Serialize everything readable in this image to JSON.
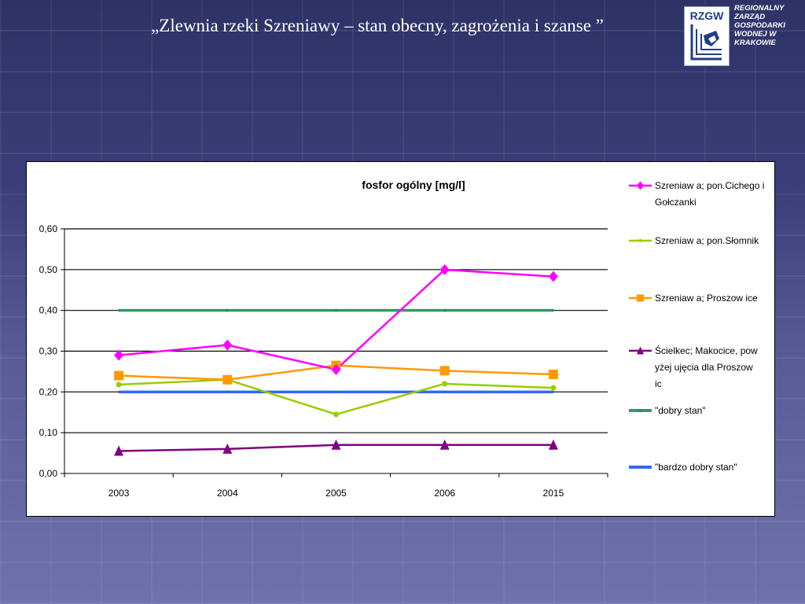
{
  "slide": {
    "title": "„Zlewnia rzeki Szreniawy – stan obecny, zagrożenia i szanse ”"
  },
  "logo": {
    "abbr": "RZGW",
    "lines": [
      "REGIONALNY",
      "ZARZĄD",
      "GOSPODARKI",
      "WODNEJ W",
      "KRAKOWIE"
    ]
  },
  "chart_data": {
    "type": "line",
    "title": "fosfor ogólny [mg/l]",
    "xlabel": "",
    "ylabel": "",
    "categories": [
      "2003",
      "2004",
      "2005",
      "2006",
      "2015"
    ],
    "ylim": [
      0,
      0.6
    ],
    "yticks": [
      "0,00",
      "0,10",
      "0,20",
      "0,30",
      "0,40",
      "0,50",
      "0,60"
    ],
    "grid": true,
    "legend_position": "right",
    "series": [
      {
        "name": "Szreniaw a; pon.Cichego i Gołczanki",
        "color": "#ff00ff",
        "marker": "diamond",
        "values": [
          0.29,
          0.315,
          0.255,
          0.5,
          0.483
        ]
      },
      {
        "name": "Szreniaw a; pon.Słomnik",
        "color": "#99cc00",
        "marker": "circle",
        "values": [
          0.218,
          0.23,
          0.145,
          0.22,
          0.21
        ]
      },
      {
        "name": "Szreniaw a; Proszow ice",
        "color": "#ff9900",
        "marker": "square",
        "values": [
          0.24,
          0.23,
          0.265,
          0.252,
          0.243
        ]
      },
      {
        "name": "Ścielkec; Makocice, pow yżej ujęcia dla Proszow ic",
        "color": "#800080",
        "marker": "triangle",
        "values": [
          0.055,
          0.06,
          0.07,
          0.07,
          0.07
        ]
      },
      {
        "name": "\"dobry stan\"",
        "color": "#339966",
        "marker": "none",
        "values": [
          0.4,
          0.4,
          0.4,
          0.4,
          0.4
        ]
      },
      {
        "name": "\"bardzo dobry stan\"",
        "color": "#3366ff",
        "marker": "none",
        "values": [
          0.2,
          0.2,
          0.2,
          0.2,
          0.2
        ]
      }
    ]
  }
}
